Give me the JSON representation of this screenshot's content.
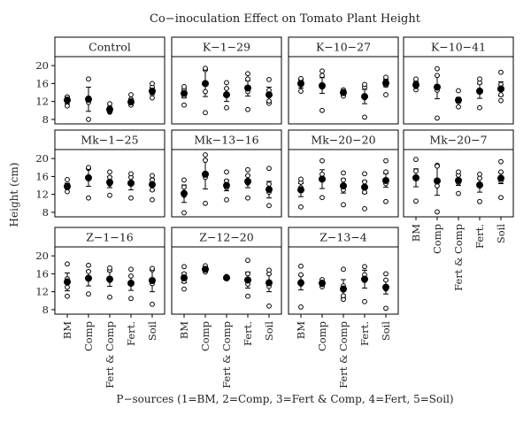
{
  "chart_data": {
    "type": "scatter",
    "title": "Co−inoculation Effect on Tomato Plant Height",
    "xlabel": "P−sources (1=BM, 2=Comp, 3=Fert & Comp, 4=Fert, 5=Soil)",
    "ylabel": "Height (cm)",
    "ylim": [
      7,
      22
    ],
    "yticks": [
      8,
      12,
      16,
      20
    ],
    "categories": [
      "BM",
      "Comp",
      "Fert & Comp",
      "Fert.",
      "Soil"
    ],
    "colors": {
      "points": "#000000",
      "strip_fill": "#ffffff",
      "panel_border": "#000000"
    },
    "panels": [
      {
        "name": "Control",
        "means": [
          12.3,
          12.5,
          10.2,
          11.9,
          14.3
        ],
        "errors": [
          [
            11.5,
            13.1
          ],
          [
            9.8,
            15.2
          ],
          [
            9.6,
            10.8
          ],
          [
            11.2,
            12.6
          ],
          [
            13.5,
            15.1
          ]
        ],
        "raw": [
          [
            11.0,
            12.5,
            13.0,
            13.0
          ],
          [
            8.0,
            11.8,
            12.8,
            17.0
          ],
          [
            9.6,
            9.8,
            10.7,
            11.5
          ],
          [
            11.2,
            11.8,
            12.5,
            13.5
          ],
          [
            12.8,
            14.0,
            15.2,
            16.0
          ]
        ]
      },
      {
        "name": "K−1−29",
        "means": [
          13.8,
          16.0,
          13.5,
          15.0,
          13.5
        ],
        "errors": [
          [
            12.8,
            14.6
          ],
          [
            13.1,
            19.0
          ],
          [
            12.0,
            14.9
          ],
          [
            13.2,
            16.6
          ],
          [
            11.8,
            15.2
          ]
        ],
        "raw": [
          [
            11.2,
            13.2,
            14.7,
            15.3
          ],
          [
            9.5,
            14.2,
            19.1,
            19.4
          ],
          [
            10.6,
            13.5,
            14.9,
            16.2
          ],
          [
            10.2,
            14.2,
            17.0,
            18.2
          ],
          [
            11.6,
            12.1,
            14.5,
            16.9
          ]
        ]
      },
      {
        "name": "K−10−27",
        "means": [
          16.0,
          15.5,
          14.0,
          13.1,
          16.1
        ],
        "errors": [
          [
            15.0,
            17.0
          ],
          [
            13.8,
            17.3
          ],
          [
            13.3,
            14.7
          ],
          [
            11.5,
            14.7
          ],
          [
            15.3,
            16.9
          ]
        ],
        "raw": [
          [
            14.3,
            15.7,
            16.8,
            17.1
          ],
          [
            10.0,
            15.2,
            17.8,
            18.8
          ],
          [
            13.2,
            13.8,
            14.5,
            14.6
          ],
          [
            8.5,
            12.8,
            15.2,
            15.8
          ],
          [
            13.5,
            15.6,
            16.7,
            17.4
          ]
        ]
      },
      {
        "name": "K−10−41",
        "means": [
          15.7,
          15.2,
          12.3,
          14.3,
          14.8
        ],
        "errors": [
          [
            15.2,
            16.2
          ],
          [
            12.6,
            17.8
          ],
          [
            11.7,
            12.9
          ],
          [
            12.7,
            15.9
          ],
          [
            13.2,
            16.4
          ]
        ],
        "raw": [
          [
            14.6,
            15.3,
            16.4,
            17.0
          ],
          [
            8.3,
            14.5,
            17.8,
            19.3
          ],
          [
            10.8,
            12.0,
            12.4,
            14.4
          ],
          [
            10.6,
            14.4,
            16.2,
            17.0
          ],
          [
            12.2,
            13.5,
            15.8,
            18.5
          ]
        ]
      },
      {
        "name": "Mk−1−25",
        "means": [
          13.8,
          15.7,
          14.7,
          14.5,
          14.2
        ],
        "errors": [
          [
            13.2,
            14.5
          ],
          [
            13.8,
            17.8
          ],
          [
            13.5,
            16.0
          ],
          [
            13.0,
            15.9
          ],
          [
            12.8,
            15.5
          ]
        ],
        "raw": [
          [
            12.6,
            13.5,
            14.0,
            15.3
          ],
          [
            11.2,
            15.8,
            17.8,
            18.0
          ],
          [
            11.8,
            14.3,
            15.8,
            17.0
          ],
          [
            11.2,
            14.4,
            15.8,
            16.6
          ],
          [
            10.8,
            13.0,
            15.2,
            16.2
          ]
        ]
      },
      {
        "name": "Mk−13−16",
        "means": [
          12.2,
          16.5,
          14.0,
          14.9,
          13.1
        ],
        "errors": [
          [
            10.2,
            14.1
          ],
          [
            13.2,
            19.8
          ],
          [
            12.8,
            15.2
          ],
          [
            13.5,
            16.3
          ],
          [
            11.2,
            14.9
          ]
        ],
        "raw": [
          [
            7.9,
            11.8,
            13.6,
            15.2
          ],
          [
            10.0,
            15.8,
            19.6,
            20.8
          ],
          [
            10.8,
            13.5,
            15.0,
            17.0
          ],
          [
            11.2,
            14.5,
            16.2,
            17.5
          ],
          [
            9.5,
            12.5,
            14.3,
            17.8
          ]
        ]
      },
      {
        "name": "Mk−20−20",
        "means": [
          13.0,
          15.4,
          13.9,
          13.6,
          15.1
        ],
        "errors": [
          [
            11.5,
            14.4
          ],
          [
            13.3,
            17.5
          ],
          [
            12.3,
            15.5
          ],
          [
            12.2,
            15.0
          ],
          [
            13.6,
            16.6
          ]
        ],
        "raw": [
          [
            9.2,
            13.5,
            14.7,
            15.4
          ],
          [
            11.3,
            15.5,
            16.5,
            19.5
          ],
          [
            9.7,
            13.0,
            15.2,
            16.8
          ],
          [
            8.8,
            12.5,
            14.8,
            16.6
          ],
          [
            10.4,
            14.4,
            17.0,
            19.5
          ]
        ]
      },
      {
        "name": "Mk−20−7",
        "means": [
          15.7,
          15.0,
          15.1,
          14.1,
          15.6
        ],
        "errors": [
          [
            13.7,
            17.7
          ],
          [
            11.8,
            18.3
          ],
          [
            14.0,
            16.2
          ],
          [
            12.5,
            15.7
          ],
          [
            14.4,
            16.8
          ]
        ],
        "raw": [
          [
            10.5,
            15.5,
            17.2,
            19.8
          ],
          [
            8.1,
            13.9,
            18.5,
            18.3
          ],
          [
            12.2,
            14.6,
            16.3,
            17.0
          ],
          [
            10.4,
            14.2,
            15.6,
            16.5
          ],
          [
            11.3,
            15.0,
            17.0,
            19.3
          ]
        ]
      },
      {
        "name": "Z−1−16",
        "means": [
          14.2,
          15.0,
          14.8,
          13.9,
          14.5
        ],
        "errors": [
          [
            12.2,
            16.2
          ],
          [
            13.3,
            16.7
          ],
          [
            13.2,
            16.5
          ],
          [
            12.3,
            15.6
          ],
          [
            12.0,
            17.0
          ]
        ],
        "raw": [
          [
            11.0,
            13.0,
            14.9,
            18.2
          ],
          [
            11.5,
            14.8,
            16.5,
            17.9
          ],
          [
            10.8,
            14.5,
            16.8,
            17.3
          ],
          [
            10.5,
            13.8,
            15.5,
            17.0
          ],
          [
            9.2,
            13.8,
            16.9,
            17.2
          ]
        ]
      },
      {
        "name": "Z−12−20",
        "means": [
          15.1,
          17.0,
          15.1,
          14.6,
          14.0
        ],
        "errors": [
          [
            14.0,
            16.2
          ],
          [
            16.4,
            17.6
          ],
          [
            14.9,
            15.3
          ],
          [
            12.8,
            16.4
          ],
          [
            12.0,
            16.0
          ]
        ],
        "raw": [
          [
            12.6,
            14.3,
            16.0,
            17.6
          ],
          [
            16.4,
            16.9,
            17.3,
            17.8
          ],
          [
            14.9,
            15.0,
            15.2,
            15.4
          ],
          [
            11.0,
            13.7,
            16.0,
            19.0
          ],
          [
            8.8,
            13.2,
            16.0,
            16.8
          ]
        ]
      },
      {
        "name": "Z−13−4",
        "means": [
          14.0,
          13.9,
          12.6,
          14.8,
          13.0
        ],
        "errors": [
          [
            12.4,
            15.6
          ],
          [
            13.6,
            14.3
          ],
          [
            10.6,
            14.7
          ],
          [
            12.8,
            16.8
          ],
          [
            11.5,
            14.5
          ]
        ],
        "raw": [
          [
            8.6,
            13.7,
            15.8,
            17.7
          ],
          [
            13.1,
            13.6,
            14.3,
            14.7
          ],
          [
            10.3,
            11.1,
            13.3,
            17.0
          ],
          [
            9.8,
            14.5,
            15.8,
            17.6
          ],
          [
            8.3,
            12.6,
            14.6,
            16.0
          ]
        ]
      }
    ]
  }
}
